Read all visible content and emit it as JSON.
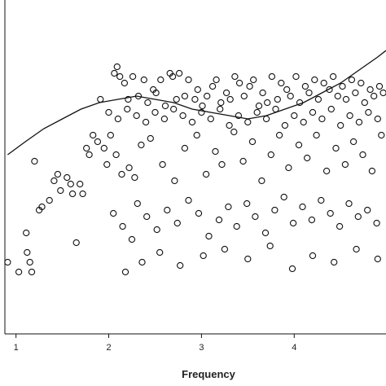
{
  "chart_data": {
    "type": "scatter",
    "title": "",
    "xlabel": "Frequency",
    "ylabel": "",
    "xlim": [
      0.88,
      4.99
    ],
    "ylim": [
      0.0,
      1.0
    ],
    "x_ticks": [
      "1",
      "2",
      "3",
      "4"
    ],
    "grid": false,
    "legend": "none",
    "colors": {
      "marker_stroke": "#111111",
      "curve": "#111111",
      "frame": "#111111"
    },
    "series": [
      {
        "kind": "points",
        "points": [
          [
            0.91,
            0.22
          ],
          [
            1.03,
            0.19
          ],
          [
            1.11,
            0.31
          ],
          [
            1.12,
            0.25
          ],
          [
            1.15,
            0.22
          ],
          [
            1.17,
            0.19
          ],
          [
            1.2,
            0.53
          ],
          [
            1.25,
            0.38
          ],
          [
            1.28,
            0.39
          ],
          [
            1.36,
            0.41
          ],
          [
            1.41,
            0.47
          ],
          [
            1.45,
            0.49
          ],
          [
            1.48,
            0.44
          ],
          [
            1.55,
            0.48
          ],
          [
            1.59,
            0.46
          ],
          [
            1.61,
            0.43
          ],
          [
            1.65,
            0.28
          ],
          [
            1.69,
            0.46
          ],
          [
            1.72,
            0.43
          ],
          [
            1.76,
            0.57
          ],
          [
            1.79,
            0.55
          ],
          [
            1.83,
            0.61
          ],
          [
            1.88,
            0.59
          ],
          [
            1.91,
            0.72
          ],
          [
            1.95,
            0.57
          ],
          [
            1.98,
            0.52
          ],
          [
            2.06,
            0.8
          ],
          [
            2.09,
            0.82
          ],
          [
            2.12,
            0.79
          ],
          [
            2.17,
            0.77
          ],
          [
            2.21,
            0.72
          ],
          [
            2.26,
            0.79
          ],
          [
            2.32,
            0.73
          ],
          [
            2.38,
            0.78
          ],
          [
            2.42,
            0.71
          ],
          [
            2.48,
            0.75
          ],
          [
            2.51,
            0.74
          ],
          [
            2.56,
            0.78
          ],
          [
            2.61,
            0.7
          ],
          [
            2.66,
            0.8
          ],
          [
            2.69,
            0.79
          ],
          [
            2.73,
            0.72
          ],
          [
            2.76,
            0.8
          ],
          [
            2.82,
            0.73
          ],
          [
            2.86,
            0.78
          ],
          [
            2.93,
            0.72
          ],
          [
            2.96,
            0.75
          ],
          [
            3.01,
            0.7
          ],
          [
            3.06,
            0.73
          ],
          [
            3.12,
            0.76
          ],
          [
            3.16,
            0.78
          ],
          [
            3.21,
            0.71
          ],
          [
            3.27,
            0.74
          ],
          [
            3.31,
            0.72
          ],
          [
            3.36,
            0.79
          ],
          [
            3.41,
            0.77
          ],
          [
            3.46,
            0.73
          ],
          [
            3.52,
            0.76
          ],
          [
            3.56,
            0.78
          ],
          [
            3.62,
            0.7
          ],
          [
            3.66,
            0.74
          ],
          [
            3.71,
            0.71
          ],
          [
            3.76,
            0.79
          ],
          [
            3.82,
            0.72
          ],
          [
            3.86,
            0.77
          ],
          [
            3.92,
            0.75
          ],
          [
            3.96,
            0.73
          ],
          [
            4.02,
            0.79
          ],
          [
            4.06,
            0.71
          ],
          [
            4.12,
            0.76
          ],
          [
            4.16,
            0.74
          ],
          [
            4.22,
            0.78
          ],
          [
            4.26,
            0.72
          ],
          [
            4.32,
            0.77
          ],
          [
            4.38,
            0.75
          ],
          [
            4.42,
            0.79
          ],
          [
            4.47,
            0.73
          ],
          [
            4.52,
            0.76
          ],
          [
            4.56,
            0.72
          ],
          [
            4.62,
            0.78
          ],
          [
            4.66,
            0.74
          ],
          [
            4.72,
            0.77
          ],
          [
            4.76,
            0.71
          ],
          [
            4.82,
            0.75
          ],
          [
            4.86,
            0.73
          ],
          [
            4.92,
            0.76
          ],
          [
            4.96,
            0.74
          ],
          [
            2.02,
            0.61
          ],
          [
            2.08,
            0.55
          ],
          [
            2.14,
            0.49
          ],
          [
            2.22,
            0.51
          ],
          [
            2.28,
            0.48
          ],
          [
            2.35,
            0.58
          ],
          [
            2.45,
            0.6
          ],
          [
            2.58,
            0.52
          ],
          [
            2.71,
            0.47
          ],
          [
            2.82,
            0.57
          ],
          [
            2.95,
            0.61
          ],
          [
            3.05,
            0.49
          ],
          [
            3.15,
            0.56
          ],
          [
            3.22,
            0.52
          ],
          [
            3.35,
            0.62
          ],
          [
            3.45,
            0.53
          ],
          [
            3.55,
            0.59
          ],
          [
            3.65,
            0.47
          ],
          [
            3.75,
            0.55
          ],
          [
            3.84,
            0.61
          ],
          [
            3.94,
            0.51
          ],
          [
            4.05,
            0.58
          ],
          [
            4.14,
            0.54
          ],
          [
            4.24,
            0.61
          ],
          [
            4.35,
            0.5
          ],
          [
            4.45,
            0.57
          ],
          [
            4.55,
            0.52
          ],
          [
            4.64,
            0.59
          ],
          [
            4.74,
            0.55
          ],
          [
            4.84,
            0.5
          ],
          [
            4.94,
            0.61
          ],
          [
            2.05,
            0.37
          ],
          [
            2.15,
            0.33
          ],
          [
            2.25,
            0.29
          ],
          [
            2.31,
            0.4
          ],
          [
            2.41,
            0.36
          ],
          [
            2.52,
            0.32
          ],
          [
            2.63,
            0.38
          ],
          [
            2.74,
            0.34
          ],
          [
            2.86,
            0.41
          ],
          [
            2.97,
            0.37
          ],
          [
            3.08,
            0.3
          ],
          [
            3.19,
            0.35
          ],
          [
            3.29,
            0.39
          ],
          [
            3.38,
            0.33
          ],
          [
            3.49,
            0.4
          ],
          [
            3.58,
            0.36
          ],
          [
            3.69,
            0.31
          ],
          [
            3.79,
            0.38
          ],
          [
            3.89,
            0.42
          ],
          [
            3.99,
            0.34
          ],
          [
            4.09,
            0.39
          ],
          [
            4.19,
            0.35
          ],
          [
            4.29,
            0.41
          ],
          [
            4.39,
            0.37
          ],
          [
            4.49,
            0.33
          ],
          [
            4.59,
            0.4
          ],
          [
            4.69,
            0.36
          ],
          [
            4.79,
            0.38
          ],
          [
            4.89,
            0.34
          ],
          [
            2.18,
            0.19
          ],
          [
            2.36,
            0.22
          ],
          [
            2.55,
            0.25
          ],
          [
            2.77,
            0.21
          ],
          [
            3.02,
            0.24
          ],
          [
            3.25,
            0.26
          ],
          [
            3.5,
            0.23
          ],
          [
            3.74,
            0.27
          ],
          [
            3.98,
            0.2
          ],
          [
            4.2,
            0.24
          ],
          [
            4.43,
            0.22
          ],
          [
            4.67,
            0.26
          ],
          [
            4.9,
            0.23
          ],
          [
            2.0,
            0.68
          ],
          [
            2.1,
            0.66
          ],
          [
            2.2,
            0.69
          ],
          [
            2.3,
            0.67
          ],
          [
            2.4,
            0.65
          ],
          [
            2.5,
            0.68
          ],
          [
            2.6,
            0.66
          ],
          [
            2.7,
            0.69
          ],
          [
            2.8,
            0.67
          ],
          [
            2.9,
            0.65
          ],
          [
            3.0,
            0.68
          ],
          [
            3.1,
            0.66
          ],
          [
            3.2,
            0.69
          ],
          [
            3.3,
            0.64
          ],
          [
            3.4,
            0.67
          ],
          [
            3.5,
            0.65
          ],
          [
            3.6,
            0.68
          ],
          [
            3.7,
            0.66
          ],
          [
            3.8,
            0.69
          ],
          [
            3.9,
            0.64
          ],
          [
            4.0,
            0.67
          ],
          [
            4.1,
            0.65
          ],
          [
            4.2,
            0.68
          ],
          [
            4.3,
            0.66
          ],
          [
            4.4,
            0.69
          ],
          [
            4.5,
            0.64
          ],
          [
            4.6,
            0.67
          ],
          [
            4.7,
            0.65
          ],
          [
            4.8,
            0.68
          ],
          [
            4.9,
            0.66
          ]
        ]
      },
      {
        "kind": "curve",
        "points": [
          [
            0.91,
            0.55
          ],
          [
            1.1,
            0.59
          ],
          [
            1.3,
            0.63
          ],
          [
            1.5,
            0.66
          ],
          [
            1.7,
            0.69
          ],
          [
            1.9,
            0.71
          ],
          [
            2.1,
            0.72
          ],
          [
            2.3,
            0.73
          ],
          [
            2.5,
            0.72
          ],
          [
            2.7,
            0.71
          ],
          [
            2.9,
            0.69
          ],
          [
            3.1,
            0.68
          ],
          [
            3.3,
            0.67
          ],
          [
            3.5,
            0.66
          ],
          [
            3.7,
            0.67
          ],
          [
            3.9,
            0.69
          ],
          [
            4.1,
            0.71
          ],
          [
            4.3,
            0.74
          ],
          [
            4.5,
            0.77
          ],
          [
            4.7,
            0.81
          ],
          [
            4.9,
            0.85
          ],
          [
            4.99,
            0.87
          ]
        ]
      }
    ]
  }
}
